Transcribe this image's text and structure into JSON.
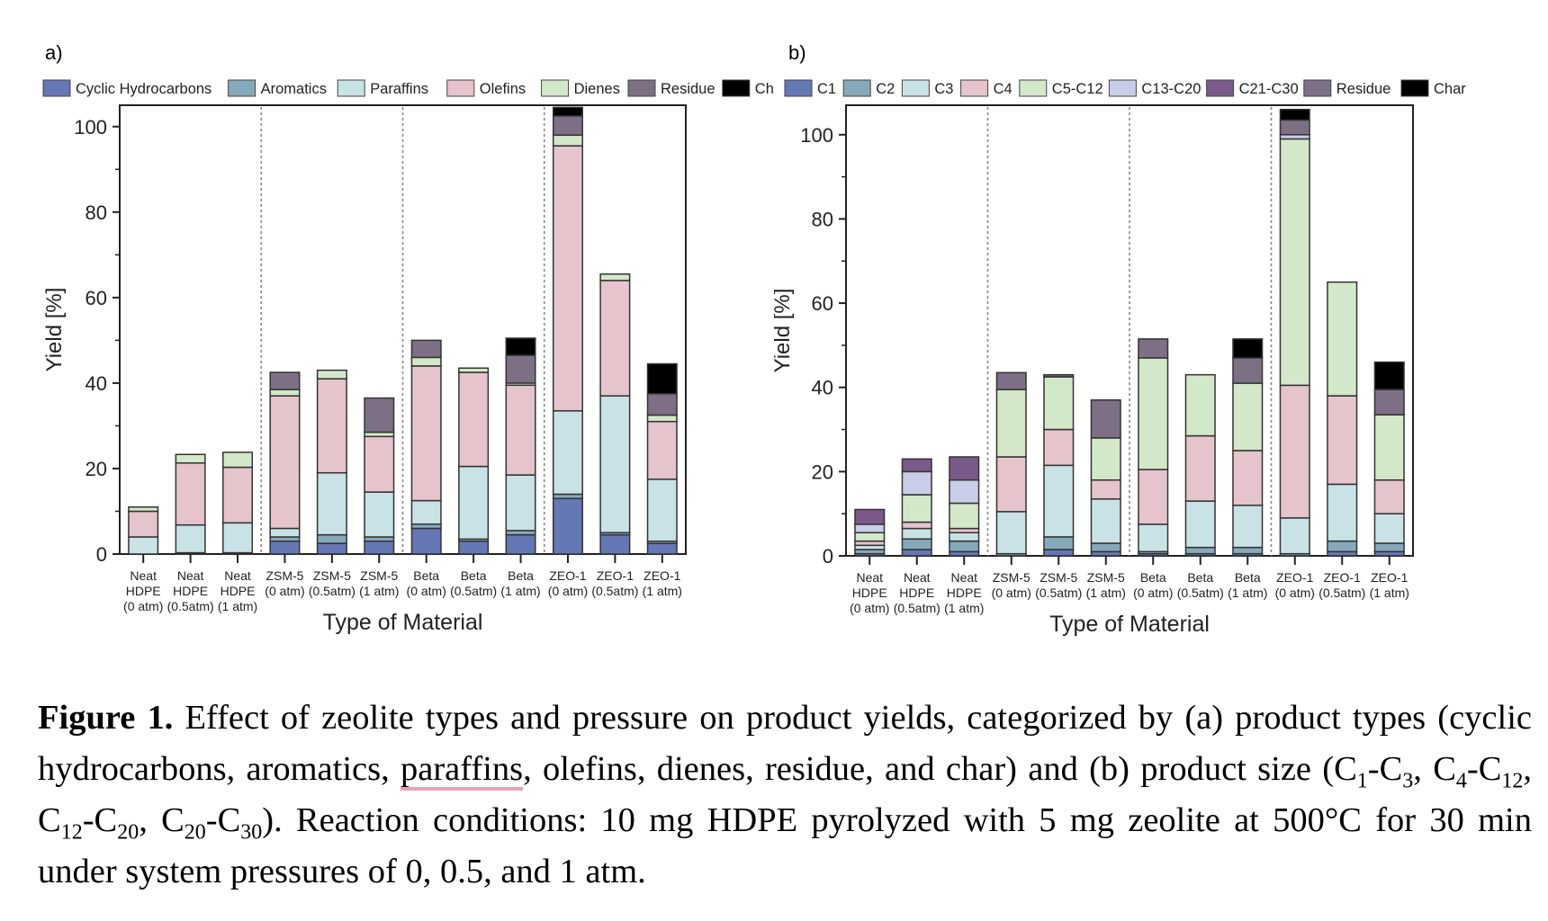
{
  "chart_data": [
    {
      "type": "bar",
      "stacked": true,
      "panel_label": "a)",
      "title": "",
      "xlabel": "Type of Material",
      "ylabel": "Yield [%]",
      "ylim": [
        0,
        105
      ],
      "yticks": [
        0,
        20,
        40,
        60,
        80,
        100
      ],
      "legend_position": "top",
      "grid": false,
      "group_separators_after": [
        2,
        5,
        8
      ],
      "categories": [
        [
          "Neat",
          "HDPE",
          "(0 atm)"
        ],
        [
          "Neat",
          "HDPE",
          "(0.5atm)"
        ],
        [
          "Neat",
          "HDPE",
          "(1 atm)"
        ],
        [
          "ZSM-5",
          "(0 atm)"
        ],
        [
          "ZSM-5",
          "(0.5atm)"
        ],
        [
          "ZSM-5",
          "(1 atm)"
        ],
        [
          "Beta",
          "(0 atm)"
        ],
        [
          "Beta",
          "(0.5atm)"
        ],
        [
          "Beta",
          "(1 atm)"
        ],
        [
          "ZEO-1",
          "(0 atm)"
        ],
        [
          "ZEO-1",
          "(0.5atm)"
        ],
        [
          "ZEO-1",
          "(1 atm)"
        ]
      ],
      "series": [
        {
          "name": "Cyclic Hydrocarbons",
          "color": "#6677b5",
          "values": [
            0,
            0.3,
            0.3,
            3,
            2.5,
            3,
            6,
            3,
            4.5,
            13,
            4.5,
            2.5
          ]
        },
        {
          "name": "Aromatics",
          "color": "#86a9ba",
          "values": [
            0,
            0,
            0,
            1,
            2,
            1,
            1,
            0.5,
            1,
            1,
            0.5,
            0.5
          ]
        },
        {
          "name": "Paraffins",
          "color": "#c9e2e5",
          "values": [
            4,
            6.5,
            7,
            2,
            14.5,
            10.5,
            5.5,
            17,
            13,
            19.5,
            32,
            14.5
          ]
        },
        {
          "name": "Olefins",
          "color": "#e5c4cc",
          "values": [
            6,
            14.5,
            13,
            31,
            22,
            13,
            31.5,
            22,
            21,
            62,
            27,
            13.5
          ]
        },
        {
          "name": "Dienes",
          "color": "#d3e8c8",
          "values": [
            1,
            2,
            3.5,
            1.5,
            2,
            1,
            2,
            1,
            0.5,
            2.5,
            1.5,
            1.5
          ]
        },
        {
          "name": "Residue",
          "color": "#7d7085",
          "values": [
            0,
            0,
            0,
            4,
            0,
            8,
            4,
            0,
            6.5,
            4.5,
            0,
            5
          ]
        },
        {
          "name": "Char",
          "color": "#000000",
          "values": [
            0,
            0,
            0,
            0,
            0,
            0,
            0,
            0,
            4,
            2,
            0,
            7
          ]
        }
      ]
    },
    {
      "type": "bar",
      "stacked": true,
      "panel_label": "b)",
      "title": "",
      "xlabel": "Type of Material",
      "ylabel": "Yield [%]",
      "ylim": [
        0,
        107
      ],
      "yticks": [
        0,
        20,
        40,
        60,
        80,
        100
      ],
      "legend_position": "top",
      "grid": false,
      "group_separators_after": [
        2,
        5,
        8
      ],
      "categories": [
        [
          "Neat",
          "HDPE",
          "(0 atm)"
        ],
        [
          "Neat",
          "HDPE",
          "(0.5atm)"
        ],
        [
          "Neat",
          "HDPE",
          "(1 atm)"
        ],
        [
          "ZSM-5",
          "(0 atm)"
        ],
        [
          "ZSM-5",
          "(0.5atm)"
        ],
        [
          "ZSM-5",
          "(1 atm)"
        ],
        [
          "Beta",
          "(0 atm)"
        ],
        [
          "Beta",
          "(0.5atm)"
        ],
        [
          "Beta",
          "(1 atm)"
        ],
        [
          "ZEO-1",
          "(0 atm)"
        ],
        [
          "ZEO-1",
          "(0.5atm)"
        ],
        [
          "ZEO-1",
          "(1 atm)"
        ]
      ],
      "series": [
        {
          "name": "C1",
          "color": "#6677b5",
          "values": [
            0.5,
            1.5,
            1,
            0,
            1.5,
            1,
            0.5,
            0.5,
            0.5,
            0,
            1,
            1
          ]
        },
        {
          "name": "C2",
          "color": "#86a9ba",
          "values": [
            1,
            2.5,
            2.5,
            0.5,
            3,
            2,
            0.5,
            1.5,
            1.5,
            0.5,
            2.5,
            2
          ]
        },
        {
          "name": "C3",
          "color": "#c9e2e5",
          "values": [
            1,
            2.5,
            2,
            10,
            17,
            10.5,
            6.5,
            11,
            10,
            8.5,
            13.5,
            7
          ]
        },
        {
          "name": "C4",
          "color": "#e5c4cc",
          "values": [
            1,
            1.5,
            1,
            13,
            8.5,
            4.5,
            13,
            15.5,
            13,
            31.5,
            21,
            8
          ]
        },
        {
          "name": "C5-C12",
          "color": "#d3e8c8",
          "values": [
            2,
            6.5,
            6,
            16,
            12.5,
            10,
            26.5,
            14.5,
            16,
            58.5,
            27,
            15.5
          ]
        },
        {
          "name": "C13-C20",
          "color": "#c9cde8",
          "values": [
            2,
            5.5,
            5.5,
            0,
            0,
            0,
            0,
            0,
            0,
            1,
            0,
            0
          ]
        },
        {
          "name": "C21-C30",
          "color": "#7a5a8a",
          "values": [
            3.5,
            3,
            5.5,
            0,
            0,
            0,
            0,
            0,
            0,
            0,
            0,
            0
          ]
        },
        {
          "name": "Residue",
          "color": "#7d7085",
          "values": [
            0,
            0,
            0,
            4,
            0.5,
            9,
            4.5,
            0,
            6,
            3.5,
            0,
            6
          ]
        },
        {
          "name": "Char",
          "color": "#000000",
          "values": [
            0,
            0,
            0,
            0,
            0,
            0,
            0,
            0,
            4.5,
            2.5,
            0,
            6.5
          ]
        }
      ]
    }
  ],
  "caption": {
    "lead": "Figure 1.",
    "line1": " Effect of zeolite types and pressure on product yields, categorized by (a) product types (cyclic hydrocarbons, aromatics, ",
    "underlined": "paraffins",
    "line2": ", olefins, dienes, residue, and char) and (b) product size (C",
    "sub1": "1",
    "t1": "-C",
    "sub2": "3",
    "t2": ", C",
    "sub3": "4",
    "t3": "-C",
    "sub4": "12",
    "t4": ", C",
    "sub5": "12",
    "t5": "-C",
    "sub6": "20",
    "t6": ", C",
    "sub7": "20",
    "t7": "-C",
    "sub8": "30",
    "tail": "). Reaction conditions: 10 mg HDPE pyrolyzed with 5 mg zeolite at 500°C for 30 min under system pressures of 0, 0.5, and 1 atm."
  }
}
